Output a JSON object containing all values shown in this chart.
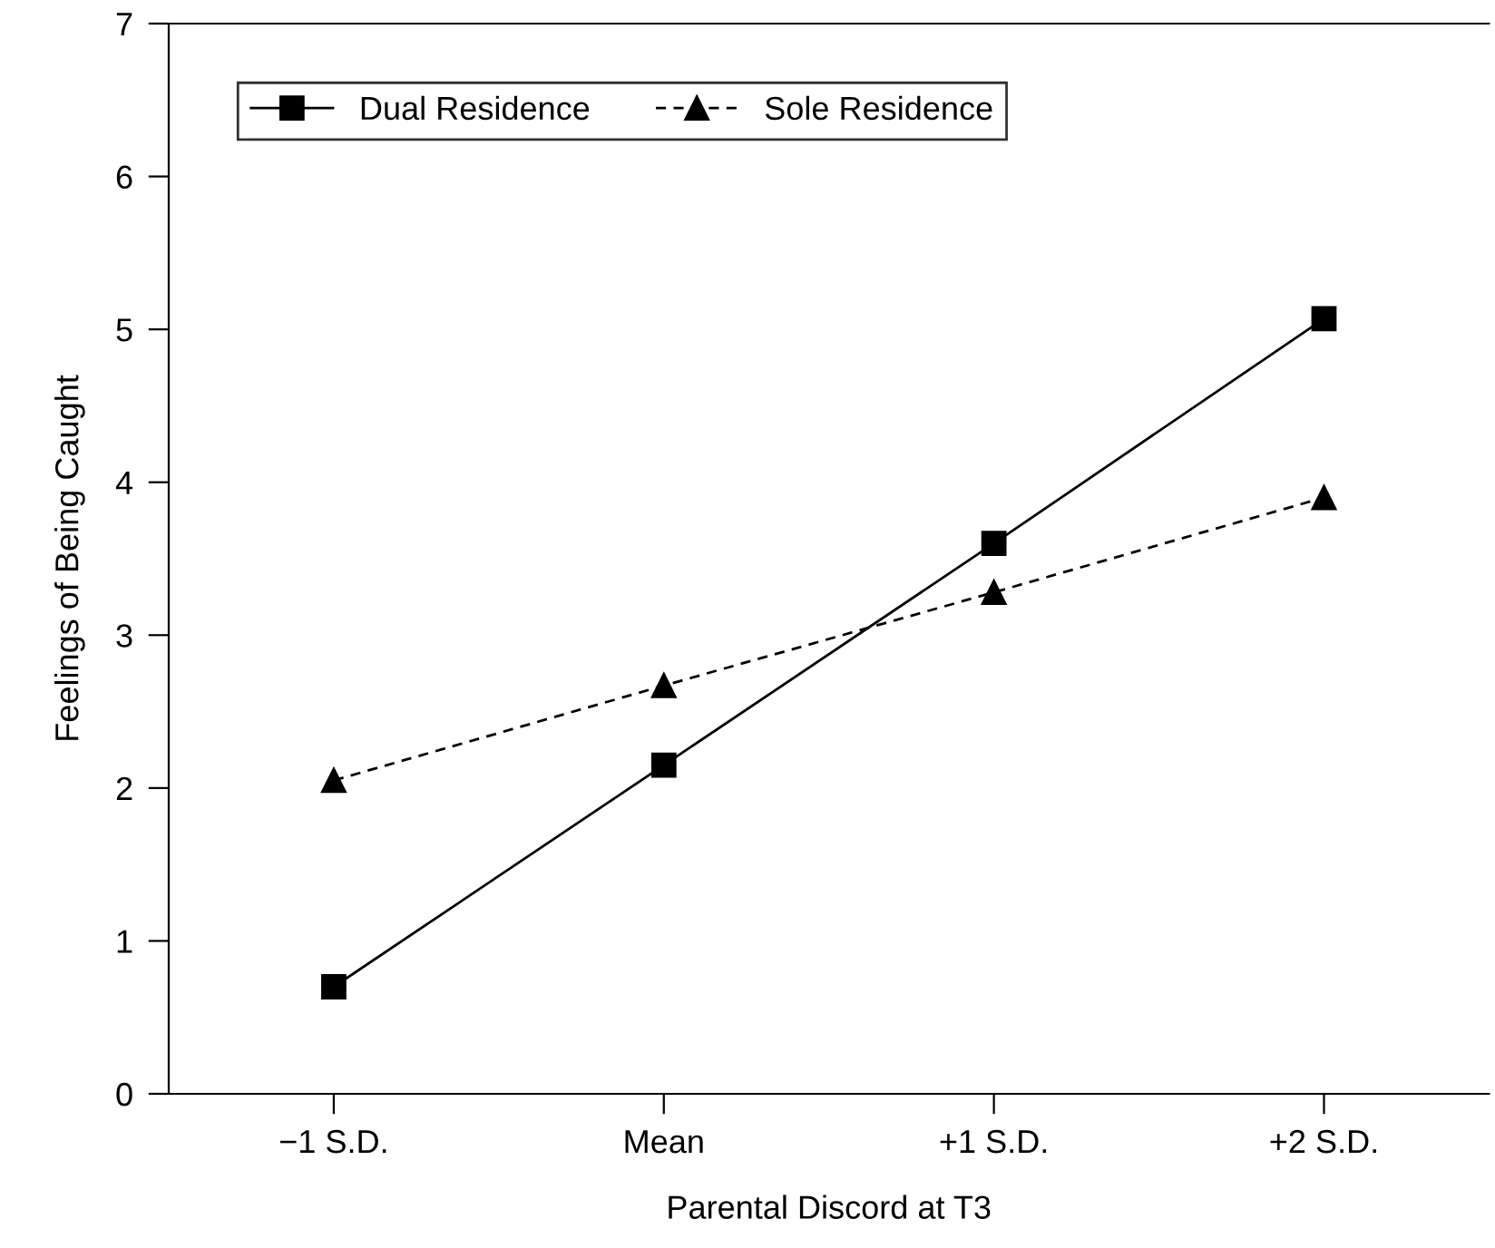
{
  "chart_data": {
    "type": "line",
    "xlabel": "Parental Discord at T3",
    "ylabel": "Feelings of Being Caught",
    "categories": [
      "−1 S.D.",
      "Mean",
      "+1 S.D.",
      "+2 S.D."
    ],
    "series": [
      {
        "name": "Dual Residence",
        "color": "#000000",
        "marker": "square",
        "line_style": "solid",
        "values": [
          0.7,
          2.15,
          3.6,
          5.07
        ]
      },
      {
        "name": "Sole Residence",
        "color": "#000000",
        "marker": "triangle",
        "line_style": "dashed",
        "values": [
          2.05,
          2.67,
          3.28,
          3.9
        ]
      }
    ],
    "ylim": [
      0,
      7
    ],
    "yticks": [
      0,
      1,
      2,
      3,
      4,
      5,
      6,
      7
    ],
    "grid": false,
    "legend": "top left"
  }
}
